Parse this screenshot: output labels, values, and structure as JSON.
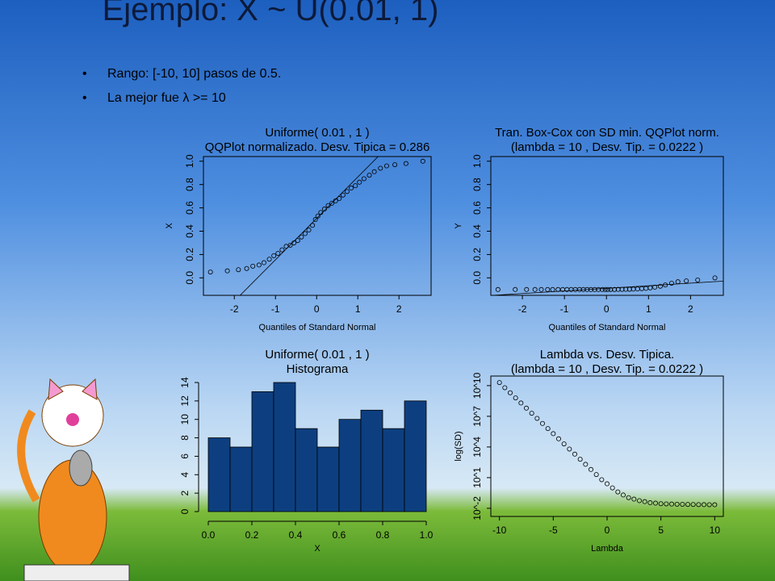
{
  "title": "Ejemplo: X ~ U(0.01, 1)",
  "bullets": [
    "Rango: [-10, 10] pasos de 0.5.",
    "La mejor fue λ >= 10"
  ],
  "chart_data": [
    {
      "type": "scatter",
      "title": "Uniforme( 0.01 ,  1 )",
      "subtitle": "QQPlot normalizado. Desv. Tipica =  0.286",
      "x_label": "Quantiles of Standard Normal",
      "y_label": "X",
      "x": [
        -2.58,
        -2.17,
        -1.9,
        -1.7,
        -1.55,
        -1.4,
        -1.28,
        -1.15,
        -1.04,
        -0.94,
        -0.84,
        -0.74,
        -0.64,
        -0.55,
        -0.46,
        -0.37,
        -0.28,
        -0.19,
        -0.1,
        -0.03,
        0.03,
        0.1,
        0.19,
        0.28,
        0.37,
        0.46,
        0.55,
        0.64,
        0.74,
        0.84,
        0.94,
        1.04,
        1.15,
        1.28,
        1.4,
        1.55,
        1.7,
        1.9,
        2.17,
        2.58
      ],
      "values": [
        0.05,
        0.06,
        0.07,
        0.08,
        0.1,
        0.11,
        0.13,
        0.16,
        0.19,
        0.21,
        0.24,
        0.27,
        0.28,
        0.3,
        0.32,
        0.35,
        0.38,
        0.41,
        0.45,
        0.5,
        0.53,
        0.56,
        0.59,
        0.62,
        0.64,
        0.66,
        0.68,
        0.71,
        0.74,
        0.77,
        0.79,
        0.82,
        0.85,
        0.88,
        0.91,
        0.94,
        0.96,
        0.97,
        0.98,
        1.0
      ],
      "ref_line": {
        "intercept": 0.51,
        "slope": 0.355
      },
      "xlim": [
        -2.75,
        2.78
      ],
      "ylim": [
        -0.15,
        1.04
      ],
      "xticks": [
        -2,
        -1,
        0,
        1,
        2
      ],
      "yticks": [
        {
          "value": 0,
          "label": "0.0"
        },
        0.2,
        0.4,
        0.6,
        0.8,
        {
          "value": 1,
          "label": "1.0"
        }
      ],
      "color": "#000000"
    },
    {
      "type": "scatter",
      "title": "Tran. Box-Cox con SD min. QQPlot norm.",
      "subtitle": "(lambda =  10 , Desv. Tip. =  0.0222 )",
      "x_label": "Quantiles of Standard Normal",
      "y_label": "Y",
      "x": [
        -2.58,
        -2.17,
        -1.9,
        -1.7,
        -1.55,
        -1.4,
        -1.28,
        -1.15,
        -1.04,
        -0.94,
        -0.84,
        -0.74,
        -0.64,
        -0.55,
        -0.46,
        -0.37,
        -0.28,
        -0.19,
        -0.1,
        -0.03,
        0.03,
        0.1,
        0.19,
        0.28,
        0.37,
        0.46,
        0.55,
        0.64,
        0.74,
        0.84,
        0.94,
        1.04,
        1.15,
        1.28,
        1.4,
        1.55,
        1.7,
        1.9,
        2.17,
        2.58
      ],
      "values": [
        -0.1,
        -0.1,
        -0.1,
        -0.1,
        -0.1,
        -0.1,
        -0.1,
        -0.1,
        -0.1,
        -0.1,
        -0.1,
        -0.1,
        -0.1,
        -0.1,
        -0.1,
        -0.1,
        -0.1,
        -0.1,
        -0.1,
        -0.0999,
        -0.0998,
        -0.0997,
        -0.0995,
        -0.0992,
        -0.0989,
        -0.0984,
        -0.0979,
        -0.0967,
        -0.095,
        -0.0927,
        -0.0905,
        -0.086,
        -0.08,
        -0.072,
        -0.061,
        -0.046,
        -0.0335,
        -0.026,
        -0.0183,
        0.0
      ],
      "ref_line": {
        "intercept": -0.09,
        "slope": 0.0222
      },
      "xlim": [
        -2.75,
        2.78
      ],
      "ylim": [
        -0.15,
        1.04
      ],
      "xticks": [
        -2,
        -1,
        0,
        1,
        2
      ],
      "yticks": [
        {
          "value": 0,
          "label": "0.0"
        },
        0.2,
        0.4,
        0.6,
        0.8,
        {
          "value": 1,
          "label": "1.0"
        }
      ],
      "color": "#000000"
    },
    {
      "type": "histogram",
      "title": "Uniforme( 0.01 ,  1 )",
      "subtitle": "Histograma",
      "x_label": "X",
      "bins": [
        0,
        0.1,
        0.2,
        0.3,
        0.4,
        0.5,
        0.6,
        0.7,
        0.8,
        0.9,
        1.0
      ],
      "values": [
        8,
        7,
        13,
        14,
        9,
        7,
        10,
        11,
        9,
        12
      ],
      "xlim": [
        0,
        1
      ],
      "ylim": [
        0,
        14
      ],
      "xticks": [
        {
          "value": 0,
          "label": "0.0"
        },
        0.2,
        0.4,
        0.6,
        0.8,
        {
          "value": 1,
          "label": "1.0"
        }
      ],
      "yticks": [
        0,
        2,
        4,
        6,
        8,
        10,
        12,
        14
      ],
      "color": "#0d3f80"
    },
    {
      "type": "scatter",
      "title": "Lambda vs. Desv. Tipica.",
      "subtitle": "(lambda =  10 , Desv. Tip. =  0.0222 )",
      "x_label": "Lambda",
      "y_label": "log(SD)",
      "log_y": true,
      "x": [
        -10,
        -9.5,
        -9,
        -8.5,
        -8,
        -7.5,
        -7,
        -6.5,
        -6,
        -5.5,
        -5,
        -4.5,
        -4,
        -3.5,
        -3,
        -2.5,
        -2,
        -1.5,
        -1,
        -0.5,
        0,
        0.5,
        1,
        1.5,
        2,
        2.5,
        3,
        3.5,
        4,
        4.5,
        5,
        5.5,
        6,
        6.5,
        7,
        7.5,
        8,
        8.5,
        9,
        9.5,
        10
      ],
      "values": [
        20000000000.0,
        6300000000.0,
        2000000000.0,
        630000000.0,
        200000000.0,
        63000000.0,
        20000000.0,
        6300000.0,
        2000000.0,
        630000.0,
        200000.0,
        63000,
        20000,
        6300,
        2000,
        630,
        200,
        63,
        20,
        6.3,
        2.5,
        1,
        0.4,
        0.2,
        0.11,
        0.079,
        0.056,
        0.045,
        0.035,
        0.032,
        0.028,
        0.027,
        0.026,
        0.025,
        0.0245,
        0.024,
        0.0235,
        0.023,
        0.0227,
        0.0224,
        0.0222
      ],
      "xlim": [
        -10.8,
        10.8
      ],
      "ylim": [
        0.0016,
        87000000000.0
      ],
      "xticks": [
        -10,
        -5,
        0,
        5,
        10
      ],
      "yticks": [
        {
          "value": 0.01,
          "label": "10^-2"
        },
        {
          "value": 10,
          "label": "10^1"
        },
        {
          "value": 10000,
          "label": "10^4"
        },
        {
          "value": 10000000,
          "label": "10^7"
        },
        {
          "value": 10000000000,
          "label": "10^10"
        }
      ],
      "color": "#000000"
    }
  ]
}
